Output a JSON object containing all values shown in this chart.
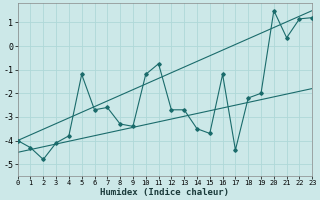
{
  "xlabel": "Humidex (Indice chaleur)",
  "background_color": "#cce8e8",
  "grid_color": "#afd8d8",
  "line_color": "#1a6b6b",
  "xlim": [
    0,
    23
  ],
  "ylim": [
    -5.5,
    1.8
  ],
  "yticks": [
    -5,
    -4,
    -3,
    -2,
    -1,
    0,
    1
  ],
  "xticks": [
    0,
    1,
    2,
    3,
    4,
    5,
    6,
    7,
    8,
    9,
    10,
    11,
    12,
    13,
    14,
    15,
    16,
    17,
    18,
    19,
    20,
    21,
    22,
    23
  ],
  "x": [
    0,
    1,
    2,
    3,
    4,
    5,
    6,
    7,
    8,
    9,
    10,
    11,
    12,
    13,
    14,
    15,
    16,
    17,
    18,
    19,
    20,
    21,
    22,
    23
  ],
  "y_zigzag": [
    -4.0,
    -4.3,
    -4.8,
    -4.1,
    -3.8,
    -1.2,
    -2.7,
    -2.6,
    -3.3,
    -3.4,
    -1.2,
    -0.75,
    -2.7,
    -2.7,
    -3.5,
    -3.7,
    -1.2,
    -4.4,
    -2.2,
    -2.0,
    1.5,
    0.35,
    1.15,
    1.2
  ],
  "trend_upper_y0": -4.0,
  "trend_upper_y1": 1.5,
  "trend_lower_y0": -4.5,
  "trend_lower_y1": -1.8
}
